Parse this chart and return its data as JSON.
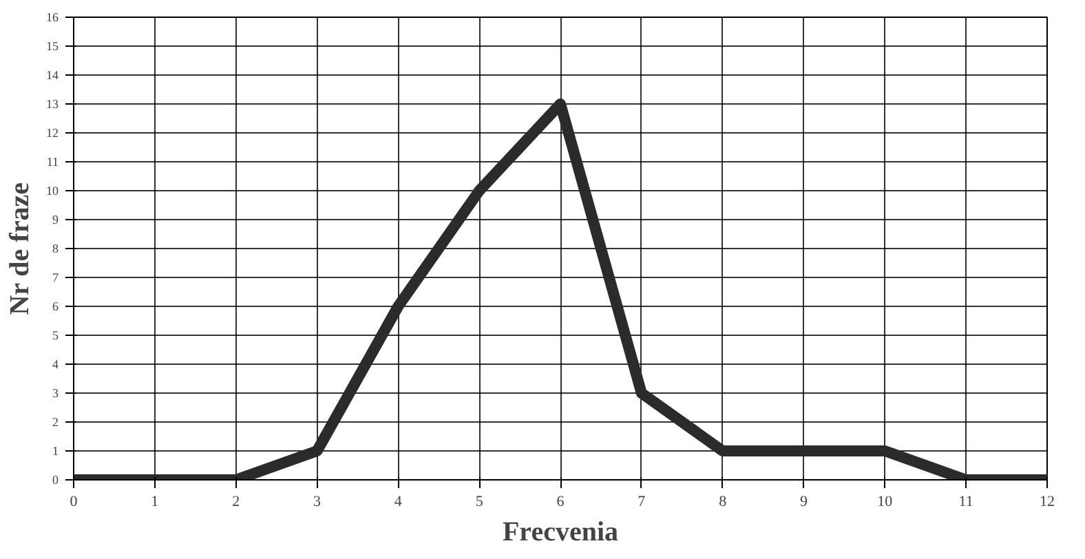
{
  "chart_data": {
    "type": "line",
    "xlabel": "Frecvenia",
    "ylabel": "Nr de fraze",
    "x": [
      0,
      1,
      2,
      3,
      4,
      5,
      6,
      7,
      8,
      9,
      10,
      11,
      12
    ],
    "series": [
      {
        "color": "#2b2b2b",
        "values": [
          0,
          0,
          0,
          1,
          6,
          10,
          13,
          3,
          1,
          1,
          1,
          0,
          0
        ]
      }
    ],
    "xlim": [
      0,
      12
    ],
    "ylim": [
      0,
      16
    ],
    "xticks": [
      0,
      1,
      2,
      3,
      4,
      5,
      6,
      7,
      8,
      9,
      10,
      11,
      12
    ],
    "yticks": [
      0,
      1,
      2,
      3,
      4,
      5,
      6,
      7,
      8,
      9,
      10,
      11,
      12,
      13,
      14,
      15,
      16
    ],
    "grid": true,
    "marker": "none",
    "line_style": "solid"
  }
}
